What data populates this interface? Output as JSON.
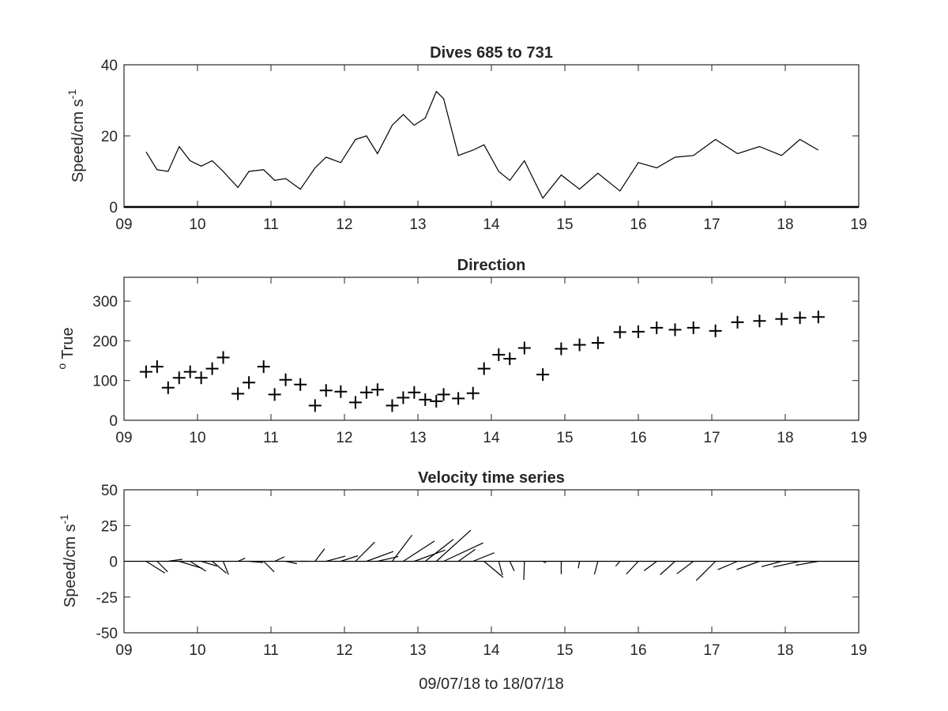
{
  "chart_data": [
    {
      "type": "line",
      "title": "Dives 685 to 731",
      "xlabel": "",
      "ylabel": "Speed/cm s",
      "ylabel_superscript": "-1",
      "xlim": [
        9,
        19
      ],
      "ylim": [
        0,
        40
      ],
      "xticks": [
        "09",
        "10",
        "11",
        "12",
        "13",
        "14",
        "15",
        "16",
        "17",
        "18",
        "19"
      ],
      "yticks": [
        "0",
        "20",
        "40"
      ],
      "x": [
        9.3,
        9.45,
        9.6,
        9.75,
        9.9,
        10.05,
        10.2,
        10.35,
        10.55,
        10.7,
        10.9,
        11.05,
        11.2,
        11.4,
        11.6,
        11.75,
        11.95,
        12.15,
        12.3,
        12.45,
        12.65,
        12.8,
        12.95,
        13.1,
        13.25,
        13.35,
        13.55,
        13.75,
        13.9,
        14.1,
        14.25,
        14.45,
        14.7,
        14.95,
        15.2,
        15.45,
        15.75,
        16.0,
        16.25,
        16.5,
        16.75,
        17.05,
        17.35,
        17.65,
        17.95,
        18.2,
        18.45
      ],
      "values": [
        15.5,
        10.5,
        10,
        17,
        13,
        11.5,
        13,
        10,
        5.5,
        10,
        10.5,
        7.5,
        8,
        5,
        11,
        14,
        12.5,
        19,
        20,
        15,
        23,
        26,
        23,
        25,
        32.5,
        30.5,
        14.5,
        16,
        17.5,
        10,
        7.5,
        13,
        2.5,
        9,
        5,
        9.5,
        4.5,
        12.5,
        11,
        14,
        14.5,
        19,
        15,
        17,
        14.5,
        19,
        16
      ]
    },
    {
      "type": "scatter",
      "title": "Direction",
      "xlabel": "",
      "ylabel": "True",
      "ylabel_superscript": "o",
      "marker": "+",
      "xlim": [
        9,
        19
      ],
      "ylim": [
        0,
        360
      ],
      "xticks": [
        "09",
        "10",
        "11",
        "12",
        "13",
        "14",
        "15",
        "16",
        "17",
        "18",
        "19"
      ],
      "yticks": [
        "0",
        "100",
        "200",
        "300"
      ],
      "x": [
        9.3,
        9.45,
        9.6,
        9.75,
        9.9,
        10.05,
        10.2,
        10.35,
        10.55,
        10.7,
        10.9,
        11.05,
        11.2,
        11.4,
        11.6,
        11.75,
        11.95,
        12.15,
        12.3,
        12.45,
        12.65,
        12.8,
        12.95,
        13.1,
        13.25,
        13.35,
        13.55,
        13.75,
        13.9,
        14.1,
        14.25,
        14.45,
        14.7,
        14.95,
        15.2,
        15.45,
        15.75,
        16.0,
        16.25,
        16.5,
        16.75,
        17.05,
        17.35,
        17.65,
        17.95,
        18.2,
        18.45
      ],
      "values": [
        122,
        135,
        82,
        107,
        122,
        107,
        130,
        158,
        67,
        95,
        135,
        65,
        102,
        90,
        37,
        75,
        72,
        45,
        70,
        77,
        37,
        57,
        70,
        52,
        48,
        65,
        55,
        68,
        130,
        165,
        155,
        182,
        115,
        180,
        190,
        195,
        222,
        223,
        233,
        228,
        233,
        225,
        247,
        250,
        255,
        258,
        260
      ]
    },
    {
      "type": "line",
      "subtype": "stick-vector",
      "title": "Velocity time series",
      "xlabel": "09/07/18 to 18/07/18",
      "ylabel": "Speed/cm s",
      "ylabel_superscript": "-1",
      "xlim": [
        9,
        19
      ],
      "ylim": [
        -50,
        50
      ],
      "xticks": [
        "09",
        "10",
        "11",
        "12",
        "13",
        "14",
        "15",
        "16",
        "17",
        "18",
        "19"
      ],
      "yticks": [
        "50",
        "25",
        "0",
        "-25",
        "-50"
      ],
      "note": "each stick starts at (x, 0); speed and direction taken from the two panels above"
    }
  ]
}
